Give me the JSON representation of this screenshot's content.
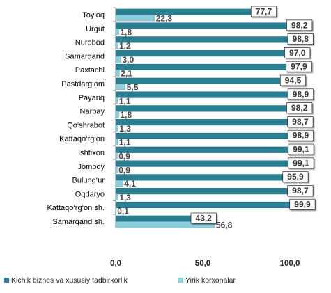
{
  "chart_data": {
    "type": "bar",
    "orientation": "horizontal",
    "categories": [
      "Toyloq",
      "Urgut",
      "Nurobod",
      "Samarqand",
      "Paxtachi",
      "Pastdarg‘om",
      "Payariq",
      "Narpay",
      "Qo‘shrabot",
      "Kattaqo‘rg‘on",
      "Ishtixon",
      "Jomboy",
      "Bulung‘ur",
      "Oqdaryo",
      "Kattaqo‘rg‘on  sh.",
      "Samarqand sh."
    ],
    "series": [
      {
        "name": "Kichik biznes va xususiy tadbirkorlik",
        "color": "#2b7f93",
        "values": [
          77.7,
          98.2,
          98.8,
          97.0,
          97.9,
          94.5,
          98.9,
          98.2,
          98.7,
          98.9,
          99.1,
          99.1,
          95.9,
          98.7,
          99.9,
          43.2
        ],
        "labels": [
          "77,7",
          "98,2",
          "98,8",
          "97,0",
          "97,9",
          "94,5",
          "98,9",
          "98,2",
          "98,7",
          "98,9",
          "99,1",
          "99,1",
          "95,9",
          "98,7",
          "99,9",
          "43,2"
        ]
      },
      {
        "name": "Yirik korxonalar",
        "color": "#8ccfdc",
        "values": [
          22.3,
          1.8,
          1.2,
          3.0,
          2.1,
          5.5,
          1.1,
          1.8,
          1.3,
          1.1,
          0.9,
          0.9,
          4.1,
          1.3,
          0.1,
          56.8
        ],
        "labels": [
          "22,3",
          "1,8",
          "1,2",
          "3,0",
          "2,1",
          "5,5",
          "1,1",
          "1,8",
          "1,3",
          "1,1",
          "0,9",
          "0,9",
          "4,1",
          "1,3",
          "0,1",
          "56,8"
        ]
      }
    ],
    "x_ticks": [
      "0,0",
      "50,0",
      "100,0"
    ],
    "x_tick_values": [
      0,
      50,
      100
    ],
    "xlim": [
      0,
      100
    ],
    "legend_position": "bottom",
    "grid": false
  }
}
